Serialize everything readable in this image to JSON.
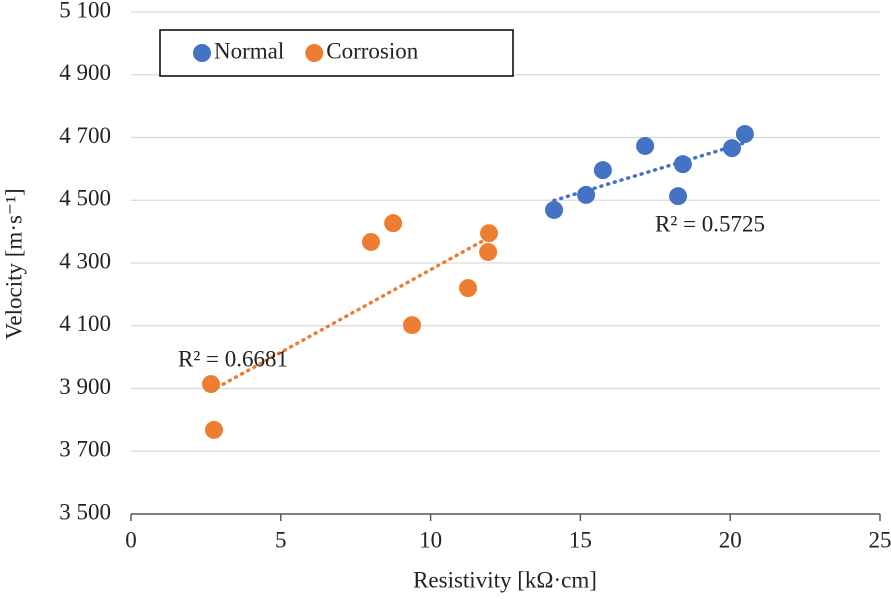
{
  "chart_data": {
    "type": "scatter",
    "x_label": "Resistivity [kΩ·cm]",
    "y_label": "Velocity [m·s⁻¹]",
    "xlim": [
      0,
      25
    ],
    "xticks": [
      0,
      5,
      10,
      15,
      20,
      25
    ],
    "ylim": [
      3500,
      5100
    ],
    "yticks": [
      {
        "value": 3500,
        "label": "3 500"
      },
      {
        "value": 3700,
        "label": "3 700"
      },
      {
        "value": 3900,
        "label": "3 900"
      },
      {
        "value": 4100,
        "label": "4 100"
      },
      {
        "value": 4300,
        "label": "4 300"
      },
      {
        "value": 4500,
        "label": "4 500"
      },
      {
        "value": 4700,
        "label": "4 700"
      },
      {
        "value": 4900,
        "label": "4 900"
      },
      {
        "value": 5100,
        "label": "5 100"
      }
    ],
    "grid": true,
    "legend": "top-left",
    "trendline": "linear",
    "series": [
      {
        "name": "Normal",
        "color": "#4472c4",
        "x": [
          14.12,
          15.19,
          15.75,
          17.16,
          18.42,
          18.26,
          20.06,
          20.49
        ],
        "values": [
          4469,
          4517,
          4596,
          4673,
          4615,
          4513,
          4666,
          4711
        ],
        "annotation": "R² = 0.5725"
      },
      {
        "name": "Corrosion",
        "color": "#ed7d31",
        "x": [
          2.67,
          2.77,
          8.01,
          8.75,
          9.38,
          11.25,
          11.92,
          11.95
        ],
        "values": [
          3914,
          3768,
          4367,
          4427,
          4102,
          4220,
          4335,
          4395
        ],
        "annotation": "R² = 0.6681"
      }
    ]
  }
}
